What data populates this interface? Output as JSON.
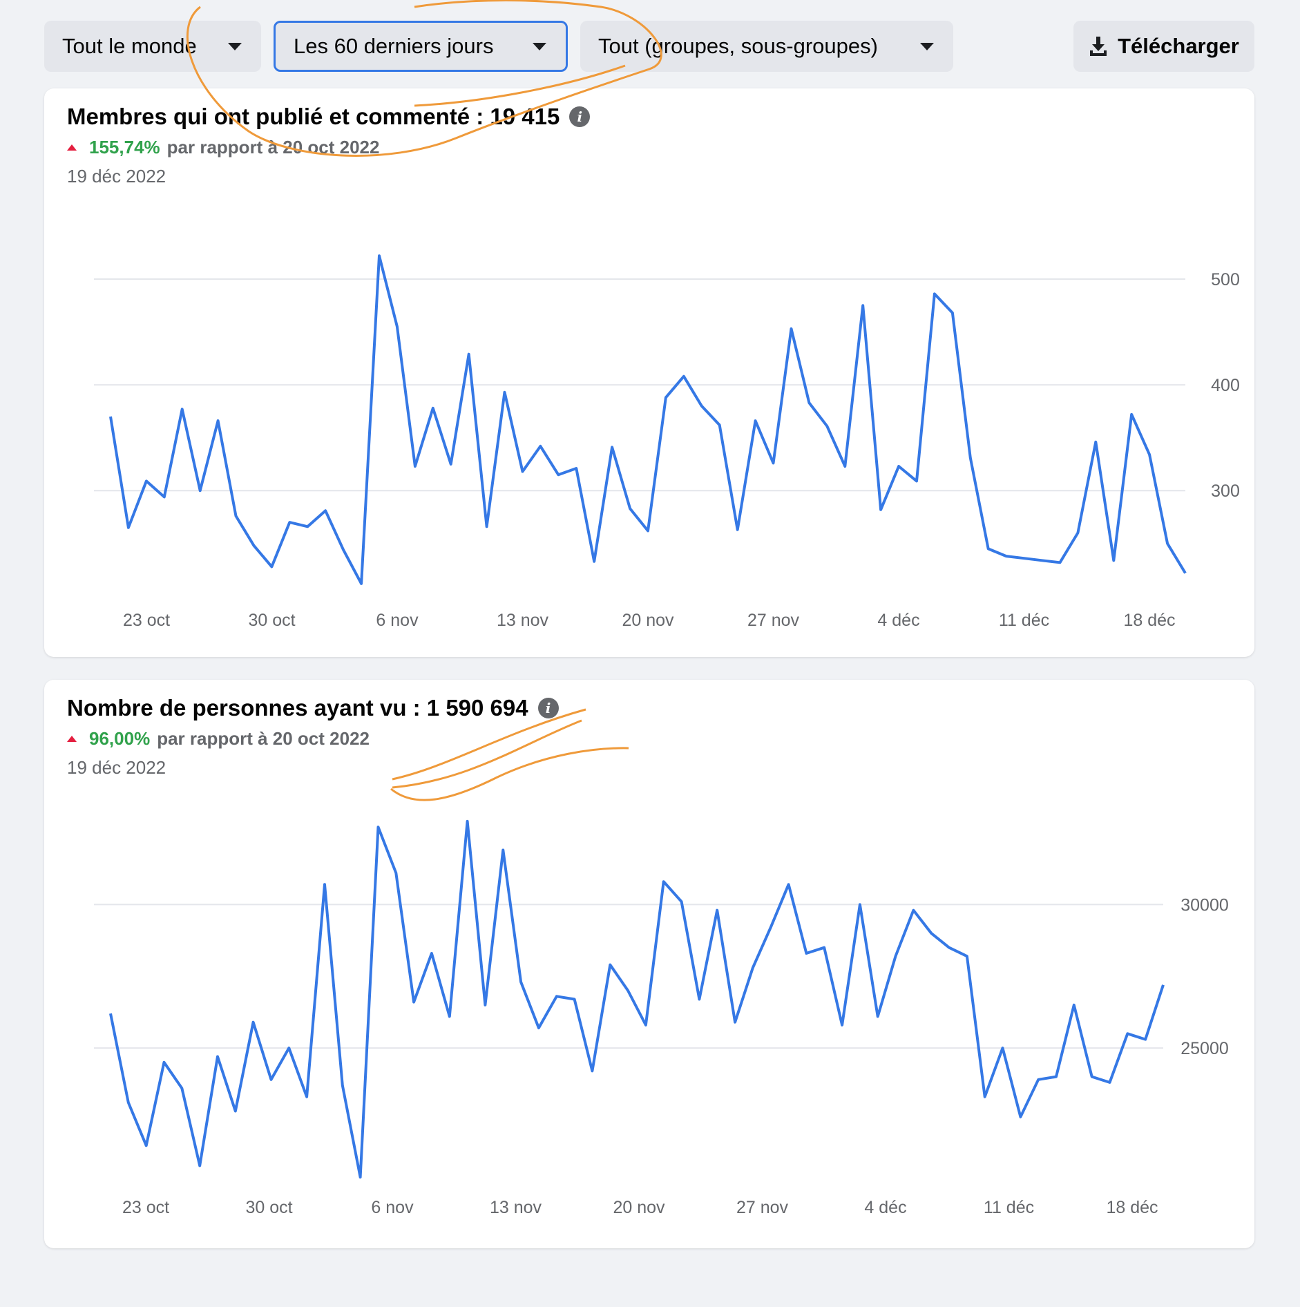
{
  "toolbar": {
    "audience": "Tout le monde",
    "period": "Les 60 derniers jours",
    "scope": "Tout (groupes, sous-groupes)",
    "download": "Télécharger"
  },
  "colors": {
    "line": "#3578e5",
    "annotation": "#ef9a3a",
    "up": "#e41e3f",
    "positive": "#31a24c"
  },
  "icons": [
    "caret-down-icon",
    "download-icon",
    "info-icon",
    "arrow-up-icon"
  ],
  "cards": [
    {
      "title": "Membres qui ont publié et commenté : 19 415",
      "change_pct": "155,74%",
      "change_text": "par rapport à 20 oct 2022",
      "date": "19 déc 2022"
    },
    {
      "title": "Nombre de personnes ayant vu : 1 590 694",
      "change_pct": "96,00%",
      "change_text": "par rapport à 20 oct 2022",
      "date": "19 déc 2022"
    }
  ],
  "chart_data": [
    {
      "type": "line",
      "x_ticks": [
        "23 oct",
        "30 oct",
        "6 nov",
        "13 nov",
        "20 nov",
        "27 nov",
        "4 déc",
        "11 déc",
        "18 déc"
      ],
      "y_ticks": [
        300,
        400,
        500
      ],
      "ylim": [
        210,
        530
      ],
      "grid": true,
      "x_start": "2022-10-21",
      "values": [
        370,
        265,
        309,
        294,
        377,
        300,
        366,
        276,
        248,
        228,
        270,
        266,
        281,
        244,
        212,
        522,
        455,
        323,
        378,
        325,
        429,
        266,
        393,
        318,
        342,
        315,
        321,
        233,
        341,
        283,
        262,
        388,
        408,
        380,
        362,
        263,
        366,
        326,
        453,
        383,
        361,
        323,
        475,
        282,
        323,
        309,
        486,
        468,
        331,
        245,
        238,
        236,
        234,
        232,
        260,
        346,
        234,
        372,
        334,
        250,
        222
      ]
    },
    {
      "type": "line",
      "x_ticks": [
        "23 oct",
        "30 oct",
        "6 nov",
        "13 nov",
        "20 nov",
        "27 nov",
        "4 déc",
        "11 déc",
        "18 déc"
      ],
      "y_ticks": [
        25000,
        30000
      ],
      "ylim": [
        20500,
        33500
      ],
      "grid": true,
      "x_start": "2022-10-21",
      "values": [
        26200,
        23100,
        21600,
        24500,
        23600,
        20900,
        24700,
        22800,
        25900,
        23900,
        25000,
        23300,
        30700,
        23700,
        20500,
        32700,
        31100,
        26600,
        28300,
        26100,
        32900,
        26500,
        31900,
        27300,
        25700,
        26800,
        26700,
        24200,
        27900,
        27000,
        25800,
        30800,
        30100,
        26700,
        29800,
        25900,
        27800,
        29200,
        30700,
        28300,
        28500,
        25800,
        30000,
        26100,
        28200,
        29800,
        29000,
        28500,
        28200,
        23300,
        25000,
        22600,
        23900,
        24000,
        26500,
        24000,
        23800,
        25500,
        25300,
        27200
      ]
    }
  ]
}
